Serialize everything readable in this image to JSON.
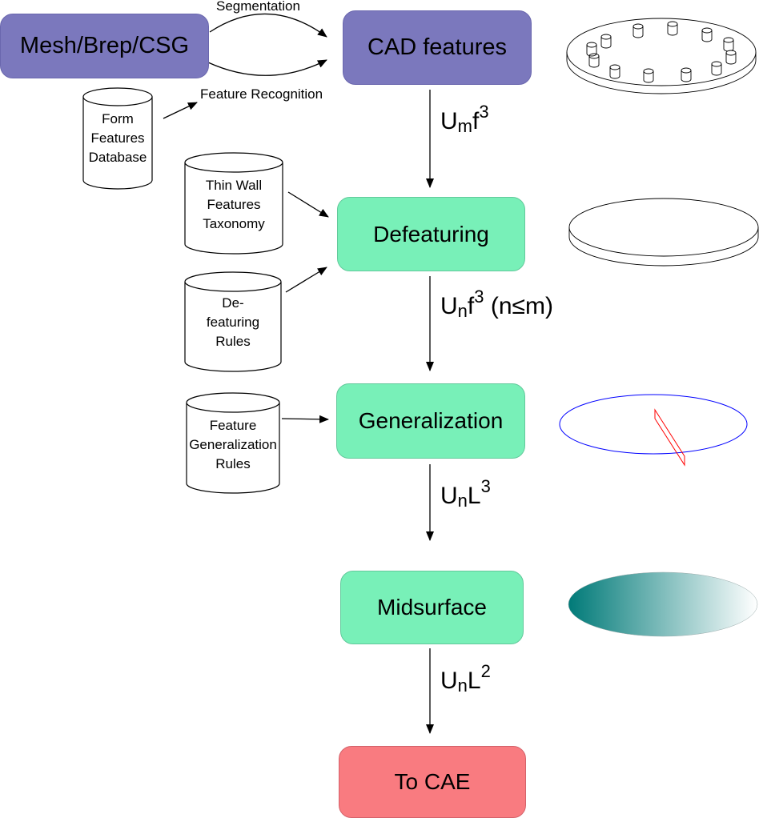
{
  "nodes": {
    "mesh": "Mesh/Brep/CSG",
    "cad": "CAD features",
    "defeaturing": "Defeaturing",
    "generalization": "Generalization",
    "midsurface": "Midsurface",
    "to_cae": "To CAE"
  },
  "edge_labels": {
    "segmentation": "Segmentation",
    "feature_recognition": "Feature Recognition"
  },
  "databases": {
    "form_features": [
      "Form",
      "Features",
      "Database"
    ],
    "thin_wall": [
      "Thin Wall",
      "Features",
      "Taxonomy"
    ],
    "defeaturing_rules": [
      "De-",
      "featuring",
      "Rules"
    ],
    "generalization_rules": [
      "Feature",
      "Generalization",
      "Rules"
    ]
  },
  "transitions": {
    "t1": {
      "base": "U",
      "sub": "m",
      "var": "f",
      "sup": "3",
      "suffix": ""
    },
    "t2": {
      "base": "U",
      "sub": "n",
      "var": "f",
      "sup": "3",
      "suffix": " (n≤m)"
    },
    "t3": {
      "base": "U",
      "sub": "n",
      "var": "L",
      "sup": "3",
      "suffix": ""
    },
    "t4": {
      "base": "U",
      "sub": "n",
      "var": "L",
      "sup": "2",
      "suffix": ""
    }
  },
  "colors": {
    "purple_node": "#7b78bd",
    "green_node": "#78f0b8",
    "red_node": "#f97b80",
    "ellipse_blue": "#0000ff",
    "plane_red": "#ff0000",
    "midsurface_teal": "#007a78"
  }
}
